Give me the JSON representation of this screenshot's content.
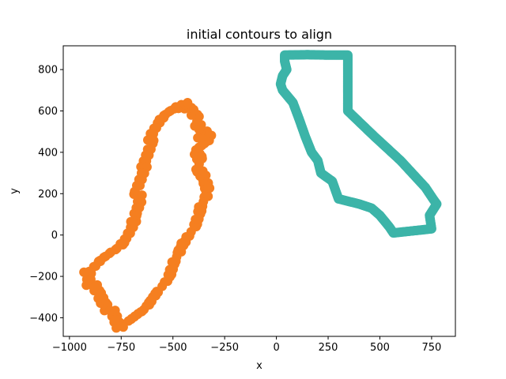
{
  "chart_data": {
    "type": "scatter",
    "title": "initial contours to align",
    "xlabel": "x",
    "ylabel": "y",
    "xlim": [
      -1030,
      865
    ],
    "ylim": [
      -490,
      915
    ],
    "xticks": [
      -1000,
      -750,
      -500,
      -250,
      0,
      250,
      500,
      750
    ],
    "xtick_labels": [
      "−1000",
      "−750",
      "−500",
      "−250",
      "0",
      "250",
      "500",
      "750"
    ],
    "yticks": [
      -400,
      -200,
      0,
      200,
      400,
      600,
      800
    ],
    "ytick_labels": [
      "−400",
      "−200",
      "0",
      "200",
      "400",
      "600",
      "800"
    ],
    "grid": false,
    "series": [
      {
        "color": "#3cb4a8",
        "marker_radius": 6,
        "connect": true,
        "points": [
          [
            40,
            870
          ],
          [
            150,
            872
          ],
          [
            250,
            870
          ],
          [
            345,
            870
          ],
          [
            345,
            600
          ],
          [
            470,
            480
          ],
          [
            600,
            360
          ],
          [
            720,
            230
          ],
          [
            760,
            170
          ],
          [
            775,
            150
          ],
          [
            740,
            95
          ],
          [
            750,
            30
          ],
          [
            565,
            10
          ],
          [
            545,
            40
          ],
          [
            500,
            95
          ],
          [
            460,
            130
          ],
          [
            400,
            150
          ],
          [
            300,
            175
          ],
          [
            270,
            260
          ],
          [
            215,
            300
          ],
          [
            200,
            360
          ],
          [
            170,
            400
          ],
          [
            140,
            475
          ],
          [
            110,
            560
          ],
          [
            80,
            640
          ],
          [
            30,
            700
          ],
          [
            20,
            730
          ],
          [
            30,
            770
          ],
          [
            50,
            800
          ],
          [
            40,
            840
          ],
          [
            40,
            870
          ]
        ]
      },
      {
        "color": "#f57f20",
        "marker_radius": 6,
        "connect": false,
        "points": [
          [
            -455,
            625
          ],
          [
            -500,
            610
          ],
          [
            -540,
            580
          ],
          [
            -570,
            545
          ],
          [
            -595,
            500
          ],
          [
            -615,
            430
          ],
          [
            -625,
            380
          ],
          [
            -640,
            330
          ],
          [
            -655,
            275
          ],
          [
            -670,
            210
          ],
          [
            -665,
            150
          ],
          [
            -680,
            90
          ],
          [
            -700,
            40
          ],
          [
            -720,
            -10
          ],
          [
            -760,
            -60
          ],
          [
            -810,
            -90
          ],
          [
            -860,
            -130
          ],
          [
            -905,
            -180
          ],
          [
            -900,
            -230
          ],
          [
            -860,
            -290
          ],
          [
            -820,
            -340
          ],
          [
            -790,
            -390
          ],
          [
            -760,
            -440
          ],
          [
            -720,
            -420
          ],
          [
            -680,
            -390
          ],
          [
            -640,
            -360
          ],
          [
            -600,
            -310
          ],
          [
            -560,
            -260
          ],
          [
            -520,
            -200
          ],
          [
            -490,
            -130
          ],
          [
            -470,
            -70
          ],
          [
            -430,
            -20
          ],
          [
            -400,
            40
          ],
          [
            -370,
            110
          ],
          [
            -340,
            200
          ],
          [
            -345,
            270
          ],
          [
            -370,
            330
          ],
          [
            -390,
            410
          ],
          [
            -340,
            450
          ],
          [
            -320,
            460
          ],
          [
            -360,
            520
          ],
          [
            -400,
            570
          ],
          [
            -420,
            610
          ],
          [
            -440,
            630
          ],
          [
            -930,
            -180
          ],
          [
            -880,
            -250
          ],
          [
            -780,
            -410
          ],
          [
            -740,
            -445
          ],
          [
            -650,
            -370
          ],
          [
            -580,
            -280
          ],
          [
            -510,
            -170
          ],
          [
            -460,
            -40
          ],
          [
            -380,
            80
          ],
          [
            -330,
            230
          ],
          [
            -360,
            380
          ],
          [
            -380,
            470
          ],
          [
            -560,
            560
          ],
          [
            -610,
            460
          ],
          [
            -650,
            300
          ],
          [
            -690,
            60
          ]
        ]
      }
    ]
  }
}
